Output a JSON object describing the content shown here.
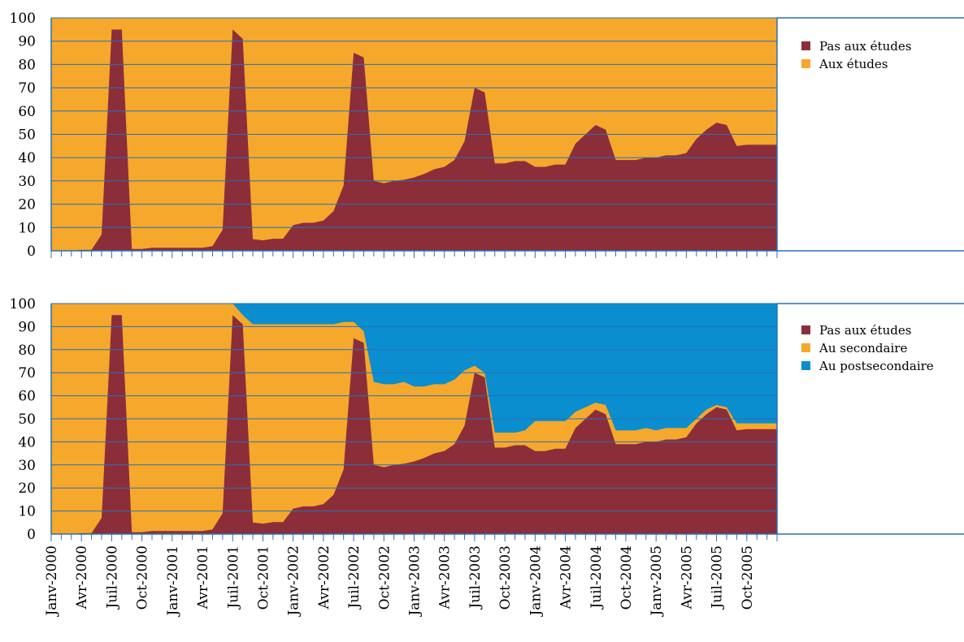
{
  "chart_data": [
    {
      "type": "area",
      "stacking": "100%",
      "ylim": [
        0,
        100
      ],
      "yticks": [
        "0",
        "10",
        "20",
        "30",
        "40",
        "50",
        "60",
        "70",
        "80",
        "90",
        "100"
      ],
      "grid": true,
      "legend_position": "right",
      "series": [
        {
          "name": "Pas aux études",
          "color": "#8B2E3A",
          "values": [
            0,
            0,
            0,
            0.4,
            0.4,
            7,
            95,
            95,
            0.8,
            0.8,
            1.3,
            1.3,
            1.3,
            1.3,
            1.3,
            1.3,
            2,
            9,
            95,
            91,
            5,
            4.5,
            5.2,
            5.2,
            11,
            12,
            12,
            13,
            17,
            28,
            85,
            83,
            30,
            29,
            30,
            30.5,
            31.5,
            33,
            35,
            36,
            39,
            47,
            70,
            68,
            37.5,
            37.5,
            38.5,
            38.5,
            36,
            36,
            37,
            37,
            46,
            50,
            54,
            52,
            39,
            39,
            39,
            40,
            40,
            41,
            41,
            42,
            48,
            52,
            55,
            54,
            45,
            45.5,
            45.5,
            45.5
          ]
        },
        {
          "name": "Aux études",
          "color": "#F5A82C"
        }
      ]
    },
    {
      "type": "area",
      "stacking": "100%",
      "ylim": [
        0,
        100
      ],
      "yticks": [
        "0",
        "10",
        "20",
        "30",
        "40",
        "50",
        "60",
        "70",
        "80",
        "90",
        "100"
      ],
      "grid": true,
      "legend_position": "right",
      "series": [
        {
          "name": "Pas aux études",
          "color": "#8B2E3A",
          "values": [
            0,
            0,
            0,
            0.4,
            0.4,
            7,
            95,
            95,
            0.8,
            0.8,
            1.3,
            1.3,
            1.3,
            1.3,
            1.3,
            1.3,
            2,
            9,
            95,
            91,
            5,
            4.5,
            5.2,
            5.2,
            11,
            12,
            12,
            13,
            17,
            28,
            85,
            83,
            30,
            29,
            30,
            30.5,
            31.5,
            33,
            35,
            36,
            39,
            47,
            70,
            68,
            37.5,
            37.5,
            38.5,
            38.5,
            36,
            36,
            37,
            37,
            46,
            50,
            54,
            52,
            39,
            39,
            39,
            40,
            40,
            41,
            41,
            42,
            48,
            52,
            55,
            54,
            45,
            45.5,
            45.5,
            45.5
          ]
        },
        {
          "name": "Au secondaire",
          "color": "#F5A82C"
        },
        {
          "name": "Au postsecondaire",
          "color": "#0A8ECF",
          "values": [
            0,
            0,
            0,
            0,
            0,
            0,
            0,
            0,
            0,
            0,
            0,
            0,
            0,
            0,
            0,
            0,
            0,
            0,
            0,
            5,
            9,
            9,
            9,
            9,
            9,
            9,
            9,
            9,
            9,
            8,
            8,
            12,
            34,
            35,
            35,
            34,
            36,
            36,
            35,
            35,
            33,
            29,
            27,
            30,
            56,
            56,
            56,
            55,
            51,
            51,
            51,
            51,
            47,
            45,
            43,
            44,
            55,
            55,
            55,
            54,
            55,
            54,
            54,
            54,
            50,
            46,
            44,
            45,
            52,
            52,
            52,
            52
          ]
        }
      ]
    }
  ],
  "x_labels": [
    "Janv-2000",
    "Avr-2000",
    "Juil-2000",
    "Oct-2000",
    "Janv-2001",
    "Avr-2001",
    "Juil-2001",
    "Oct-2001",
    "Janv-2002",
    "Avr-2002",
    "Juil-2002",
    "Oct-2002",
    "Janv-2003",
    "Avr-2003",
    "Juil-2003",
    "Oct-2003",
    "Janv-2004",
    "Avr-2004",
    "Juil-2004",
    "Oct-2004",
    "Janv-2005",
    "Avr-2005",
    "Juil-2005",
    "Oct-2005"
  ]
}
